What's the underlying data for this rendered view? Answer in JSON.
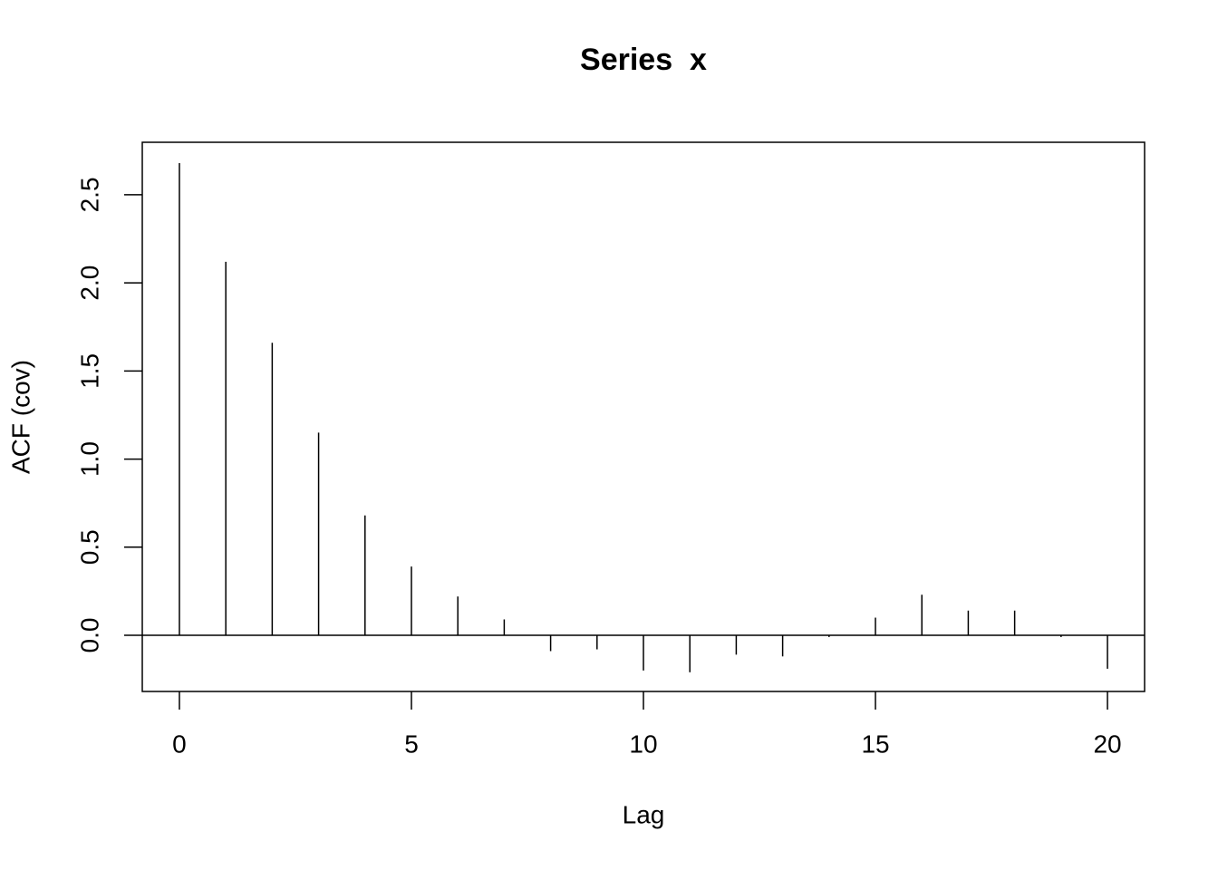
{
  "chart_data": {
    "type": "stem",
    "title": "Series  x",
    "x_label": "Lag",
    "y_label": "ACF (cov)",
    "x": [
      0,
      1,
      2,
      3,
      4,
      5,
      6,
      7,
      8,
      9,
      10,
      11,
      12,
      13,
      14,
      15,
      16,
      17,
      18,
      19,
      20
    ],
    "values": [
      2.68,
      2.12,
      1.66,
      1.15,
      0.68,
      0.39,
      0.22,
      0.09,
      -0.09,
      -0.08,
      -0.2,
      -0.21,
      -0.11,
      -0.12,
      -0.01,
      0.1,
      0.23,
      0.14,
      0.14,
      -0.01,
      -0.19
    ],
    "color": "#000000",
    "xlim": [
      -0.8,
      20.8
    ],
    "ylim": [
      -0.319,
      2.798
    ],
    "xticks": [
      0,
      5,
      10,
      15,
      20
    ],
    "yticks": [
      {
        "value": 0,
        "label": "0.0"
      },
      0.5,
      {
        "value": 1,
        "label": "1.0"
      },
      1.5,
      {
        "value": 2,
        "label": "2.0"
      },
      2.5
    ]
  }
}
